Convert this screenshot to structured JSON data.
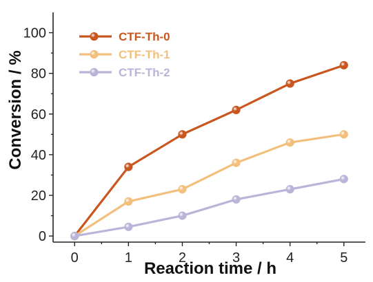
{
  "chart_data": {
    "type": "line",
    "xlabel": "Reaction time / h",
    "ylabel": "Conversion / %",
    "x": [
      0,
      1,
      2,
      3,
      4,
      5
    ],
    "xlim": [
      -0.4,
      5.4
    ],
    "ylim": [
      -3,
      110
    ],
    "xticks": [
      0,
      1,
      2,
      3,
      4,
      5
    ],
    "yticks": [
      0,
      20,
      40,
      60,
      80,
      100
    ],
    "grid": false,
    "legend_position": "top-left",
    "series": [
      {
        "name": "CTF-Th-0",
        "color": "#c8561e",
        "values": [
          0,
          34,
          50,
          62,
          75,
          84
        ]
      },
      {
        "name": "CTF-Th-1",
        "color": "#f2bf7c",
        "values": [
          0,
          17,
          23,
          36,
          46,
          50
        ]
      },
      {
        "name": "CTF-Th-2",
        "color": "#b8b5d8",
        "values": [
          0,
          4.5,
          10,
          18,
          23,
          28
        ]
      }
    ]
  }
}
